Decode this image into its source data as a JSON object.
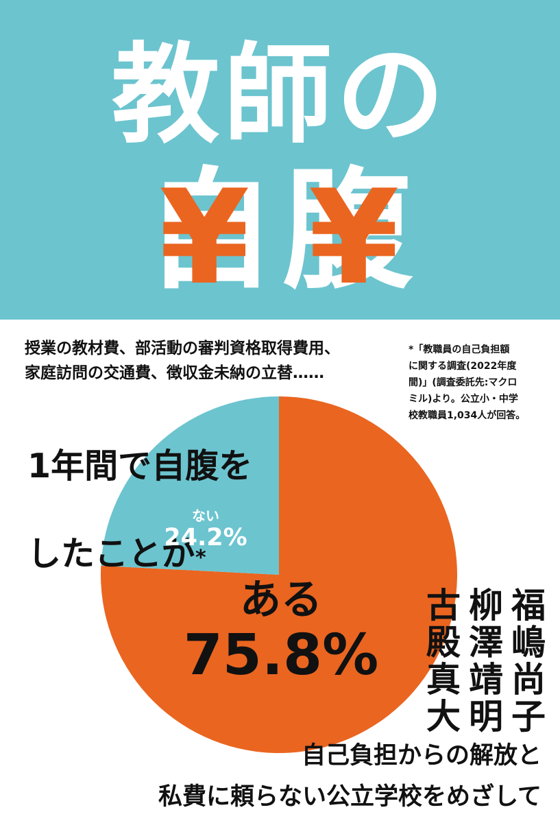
{
  "colors": {
    "accent_blue": "#6cc4cf",
    "accent_orange": "#ea6520",
    "text": "#111111",
    "background": "#ffffff"
  },
  "cover": {
    "title_line1": "教師の",
    "title_line2_char1": "自",
    "title_line2_char2": "腹",
    "yen_mark": "¥",
    "subtitle_line1": "授業の教材費、部活動の審判資格取得費用、",
    "subtitle_line2": "家庭訪問の交通費、徴収金未納の立替……",
    "note": "*「教職員の自己負担額\nに関する調査(2022年度\n間)」(調査委託先:マクロ\nミル)より。公立小・中学\n校教職員1,034人が回答。",
    "question_line1": "1年間で自腹を",
    "question_line2": "したことが",
    "question_asterisk": "*",
    "authors": [
      "福嶋尚子",
      "柳澤靖明",
      "古殿真大"
    ],
    "tagline_line1": "自己負担からの解放と",
    "tagline_line2": "私費に頼らない公立学校をめざして"
  },
  "chart_data": {
    "type": "pie",
    "slices": [
      {
        "label": "ある",
        "percent_label": "75.8%",
        "value": 75.8,
        "color": "#ea6520"
      },
      {
        "label": "ない",
        "percent_label": "24.2%",
        "value": 24.2,
        "color": "#6cc4cf"
      }
    ],
    "start_angle_deg": 0,
    "direction": "clockwise"
  }
}
